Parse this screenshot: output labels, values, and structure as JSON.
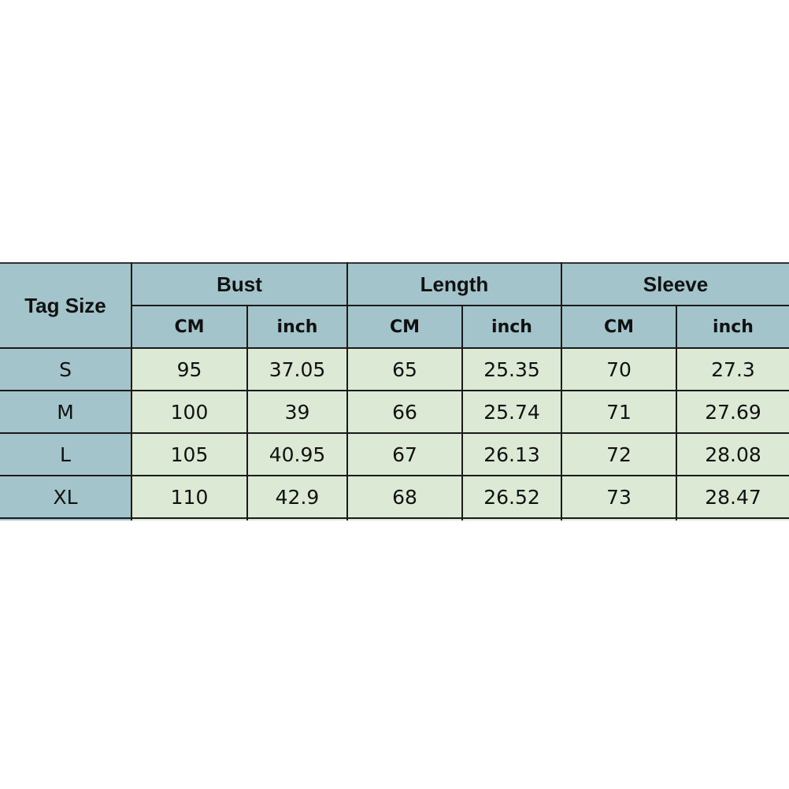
{
  "header": {
    "tag_size": "Tag Size",
    "groups": [
      "Bust",
      "Length",
      "Sleeve"
    ],
    "units": [
      "CM",
      "inch",
      "CM",
      "inch",
      "CM",
      "inch"
    ]
  },
  "rows": [
    {
      "size": "S",
      "values": [
        "95",
        "37.05",
        "65",
        "25.35",
        "70",
        "27.3"
      ]
    },
    {
      "size": "M",
      "values": [
        "100",
        "39",
        "66",
        "25.74",
        "71",
        "27.69"
      ]
    },
    {
      "size": "L",
      "values": [
        "105",
        "40.95",
        "67",
        "26.13",
        "72",
        "28.08"
      ]
    },
    {
      "size": "XL",
      "values": [
        "110",
        "42.9",
        "68",
        "26.52",
        "73",
        "28.47"
      ]
    }
  ],
  "colors": {
    "header": "#a3c4cb",
    "data": "#dcead5"
  }
}
